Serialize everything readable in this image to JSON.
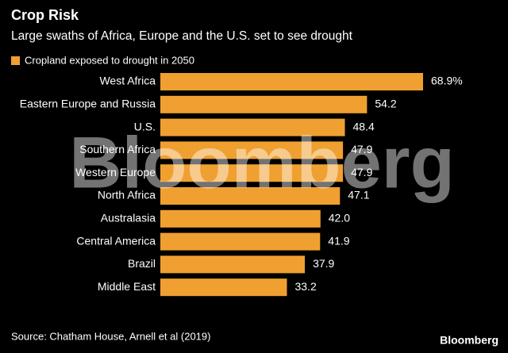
{
  "chart_data": {
    "type": "bar",
    "orientation": "horizontal",
    "title": "Crop Risk",
    "subtitle": "Large swaths of Africa, Europe and the U.S. set to see drought",
    "categories": [
      "West Africa",
      "Eastern Europe and Russia",
      "U.S.",
      "Southern Africa",
      "Western Europe",
      "North Africa",
      "Australasia",
      "Central America",
      "Brazil",
      "Middle East"
    ],
    "series": [
      {
        "name": "Cropland exposed to drought in 2050",
        "color": "#f0a030",
        "values": [
          68.9,
          54.2,
          48.4,
          47.9,
          47.9,
          47.1,
          42.0,
          41.9,
          37.9,
          33.2
        ],
        "value_labels": [
          "68.9%",
          "54.2",
          "48.4",
          "47.9",
          "47.9",
          "47.1",
          "42.0",
          "41.9",
          "37.9",
          "33.2"
        ]
      }
    ],
    "source": "Source: Chatham House, Arnell et al (2019)",
    "watermark": "Bloomberg",
    "brand": "Bloomberg"
  }
}
